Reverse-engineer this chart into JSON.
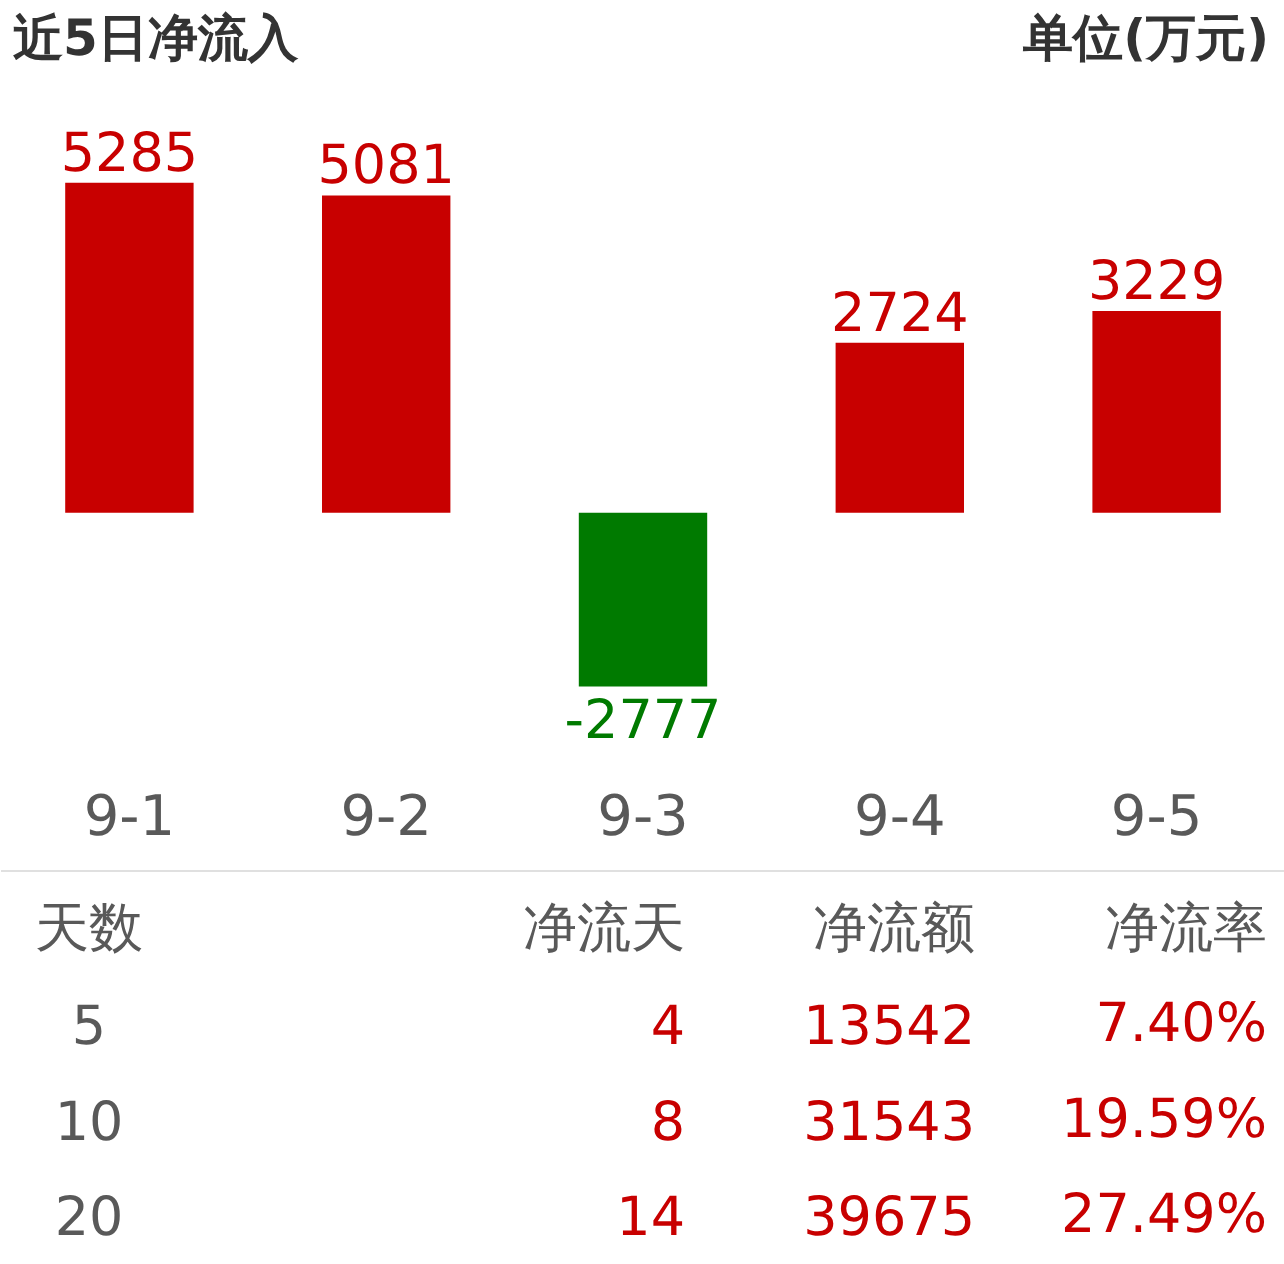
{
  "chart_data": [
    {
      "type": "bar",
      "title": "近5日净流入",
      "ylabel": "单位(万元)",
      "categories": [
        "9-1",
        "9-2",
        "9-3",
        "9-4",
        "9-5"
      ],
      "values": [
        5285,
        5081,
        -2777,
        2724,
        3229
      ],
      "colors": [
        "#c80000",
        "#c80000",
        "#007a00",
        "#c80000",
        "#c80000"
      ],
      "data_labels": true
    },
    {
      "type": "other",
      "categories": [
        "天数",
        "净流天",
        "净流额",
        "净流率"
      ],
      "cell_labels": [
        [
          "5",
          "4",
          "13542",
          "7.40%"
        ],
        [
          "10",
          "8",
          "31543",
          "19.59%"
        ],
        [
          "20",
          "14",
          "39675",
          "27.49%"
        ]
      ]
    }
  ]
}
